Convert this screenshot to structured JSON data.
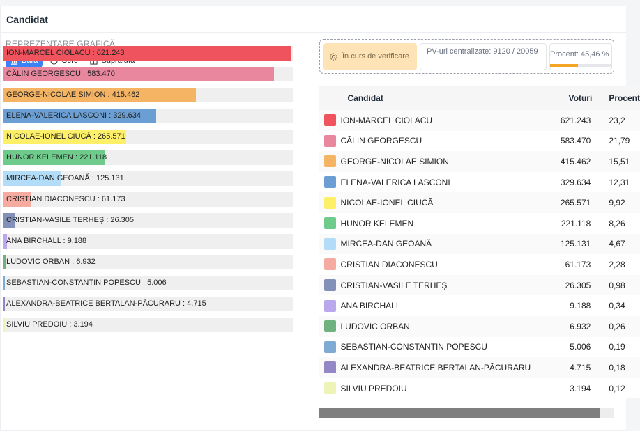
{
  "header": {
    "title": "Candidat"
  },
  "left": {
    "section_label": "REPREZENTARE GRAFICĂ",
    "tabs": [
      {
        "label": "Bara",
        "icon": "bar-chart-icon",
        "active": true
      },
      {
        "label": "Cerc",
        "icon": "pie-chart-icon",
        "active": false
      },
      {
        "label": "Suprafata",
        "icon": "area-grid-icon",
        "active": false
      }
    ]
  },
  "status": {
    "verification": "În curs de verificare",
    "pv": "PV-uri centralizate: 9120 / 20059",
    "percent": "Procent: 45,46 %",
    "percent_value": 45.46
  },
  "table": {
    "headers": {
      "color": "",
      "name": "Candidat",
      "votes": "Voturi",
      "pct": "Procent"
    },
    "rows": [
      {
        "name": "ION-MARCEL CIOLACU",
        "votes": "621.243",
        "pct": "23,2",
        "color": "#ef535e"
      },
      {
        "name": "CĂLIN GEORGESCU",
        "votes": "583.470",
        "pct": "21,79",
        "color": "#e9879f"
      },
      {
        "name": "GEORGE-NICOLAE SIMION",
        "votes": "415.462",
        "pct": "15,51",
        "color": "#f5b463"
      },
      {
        "name": "ELENA-VALERICA LASCONI",
        "votes": "329.634",
        "pct": "12,31",
        "color": "#6b9fd4"
      },
      {
        "name": "NICOLAE-IONEL CIUCĂ",
        "votes": "265.571",
        "pct": "9,92",
        "color": "#fdf068"
      },
      {
        "name": "HUNOR KELEMEN",
        "votes": "221.118",
        "pct": "8,26",
        "color": "#6ecb8b"
      },
      {
        "name": "MIRCEA-DAN GEOANĂ",
        "votes": "125.131",
        "pct": "4,67",
        "color": "#b2dcf7"
      },
      {
        "name": "CRISTIAN DIACONESCU",
        "votes": "61.173",
        "pct": "2,28",
        "color": "#f5aba0"
      },
      {
        "name": "CRISTIAN-VASILE TERHEȘ",
        "votes": "26.305",
        "pct": "0,98",
        "color": "#8390b8"
      },
      {
        "name": "ANA BIRCHALL",
        "votes": "9.188",
        "pct": "0,34",
        "color": "#b9a9ec"
      },
      {
        "name": "LUDOVIC ORBAN",
        "votes": "6.932",
        "pct": "0,26",
        "color": "#6fb27f"
      },
      {
        "name": "SEBASTIAN-CONSTANTIN POPESCU",
        "votes": "5.006",
        "pct": "0,19",
        "color": "#7eaad3"
      },
      {
        "name": "ALEXANDRA-BEATRICE BERTALAN-PĂCURARU",
        "votes": "4.715",
        "pct": "0,18",
        "color": "#9487c6"
      },
      {
        "name": "SILVIU PREDOIU",
        "votes": "3.194",
        "pct": "0,12",
        "color": "#eef3b8"
      }
    ]
  },
  "scroll": {
    "fraction": 0.95
  }
}
